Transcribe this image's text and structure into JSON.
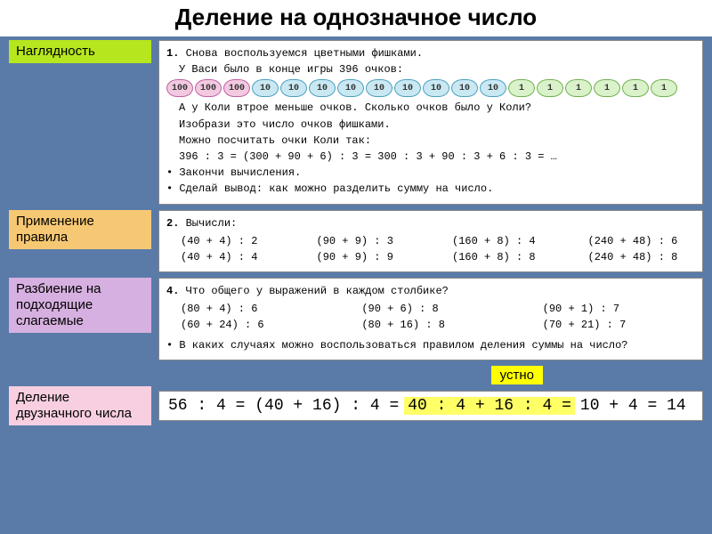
{
  "title": "Деление на однозначное число",
  "labels": {
    "l1": "Наглядность",
    "l2": "Применение правила",
    "l3": "Разбиение на подходящие слагаемые",
    "l4": "Деление двузначного числа"
  },
  "colors": {
    "page_bg": "#5a7ba8",
    "title_bg": "#ffffff",
    "lbl_green": "#b6e61d",
    "lbl_orange": "#f7c873",
    "lbl_violet": "#d6b0e0",
    "lbl_pink": "#f7cfe0",
    "panel_bg": "#ffffff",
    "highlight": "#ffff66",
    "chip100_bg": "#f2c9e0",
    "chip10_bg": "#c9e8f2",
    "chip1_bg": "#d9f2c9"
  },
  "panel1": {
    "num": "1.",
    "line1": "Снова воспользуемся цветными фишками.",
    "line2": "У Васи было в конце игры 396 очков:",
    "chips100": [
      "100",
      "100",
      "100"
    ],
    "chips10": [
      "10",
      "10",
      "10",
      "10",
      "10",
      "10",
      "10",
      "10",
      "10"
    ],
    "chips1": [
      "1",
      "1",
      "1",
      "1",
      "1",
      "1"
    ],
    "line3": "А у Коли втрое меньше очков. Сколько очков было у Коли?",
    "line4": "Изобрази это число очков фишками.",
    "line5": "Можно посчитать очки Коли так:",
    "expr": "396 : 3  =  (300 + 90 + 6) : 3  =  300 : 3 + 90 : 3 + 6 : 3  =  …",
    "b1": "Закончи вычисления.",
    "b2": "Сделай вывод: как можно разделить сумму на число."
  },
  "panel2": {
    "num": "2.",
    "head": "Вычисли:",
    "cols": [
      [
        "(40 + 4) : 2",
        "(40 + 4) : 4"
      ],
      [
        "(90 + 9) : 3",
        "(90 + 9) : 9"
      ],
      [
        "(160 + 8) : 4",
        "(160 + 8) : 8"
      ],
      [
        "(240 + 48) : 6",
        "(240 + 48) : 8"
      ]
    ]
  },
  "panel3": {
    "num": "4.",
    "head": "Что общего у выражений в каждом столбике?",
    "cols": [
      [
        "(80  +  4) : 6",
        "(60  + 24) : 6"
      ],
      [
        "(90  +  6) : 8",
        "(80  + 16) : 8"
      ],
      [
        "(90  +  1) : 7",
        "(70  + 21) : 7"
      ]
    ],
    "q": "В каких случаях можно воспользоваться правилом деления суммы на число?"
  },
  "ustno": "устно",
  "equation": {
    "p1": "56 : 4 = (40 + 16) : 4 =",
    "hl": "40 : 4 + 16 : 4 =",
    "p2": "10 + 4 = 14"
  }
}
